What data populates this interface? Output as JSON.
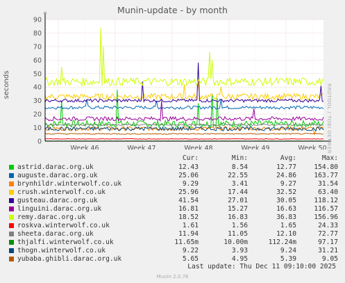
{
  "title": "Munin-update - by month",
  "side_label": "RRDTOOL / TOBI OETIKER",
  "footer": "Munin 2.0.76",
  "last_update": "Last update: Thu Dec 11 09:10:00 2025",
  "legend_headers": {
    "cur": "Cur:",
    "min": "Min:",
    "avg": "Avg:",
    "max": "Max:"
  },
  "chart_data": {
    "type": "line",
    "title": "Munin-update - by month",
    "ylabel": "seconds",
    "ylim": [
      0,
      90
    ],
    "yticks": [
      "0",
      "10",
      "20",
      "30",
      "40",
      "50",
      "60",
      "70",
      "80",
      "90"
    ],
    "xtick_labels": [
      "Week 46",
      "Week 47",
      "Week 48",
      "Week 49",
      "Week 50"
    ],
    "grid": true,
    "series": [
      {
        "name": "astrid.darac.org.uk",
        "color": "#00cc00",
        "cur": "12.43",
        "min": "8.54",
        "avg": "12.77",
        "max": "154.80",
        "base": 12.8,
        "noise": 2.5,
        "spikes": [
          [
            0.06,
            30
          ],
          [
            0.26,
            38
          ],
          [
            0.55,
            28
          ],
          [
            0.6,
            35
          ],
          [
            0.62,
            32
          ]
        ]
      },
      {
        "name": "auguste.darac.org.uk",
        "color": "#0066b3",
        "cur": "25.06",
        "min": "22.55",
        "avg": "24.86",
        "max": "163.77",
        "base": 24.9,
        "noise": 1.2,
        "spikes": [
          [
            0.15,
            31
          ],
          [
            0.4,
            30
          ],
          [
            0.63,
            31
          ]
        ]
      },
      {
        "name": "brynhildr.winterwolf.co.uk",
        "color": "#ff8000",
        "cur": "9.29",
        "min": "3.41",
        "avg": "9.27",
        "max": "31.54",
        "base": 9.3,
        "noise": 1.5,
        "spikes": [
          [
            0.97,
            5
          ]
        ]
      },
      {
        "name": "crush.winterwolf.co.uk",
        "color": "#ffcc00",
        "cur": "25.96",
        "min": "17.44",
        "avg": "32.52",
        "max": "63.40",
        "base": 33,
        "noise": 2.2,
        "spikes": [
          [
            0.5,
            42
          ],
          [
            0.55,
            44
          ],
          [
            0.63,
            40
          ]
        ]
      },
      {
        "name": "gusteau.darac.org.uk",
        "color": "#330099",
        "cur": "41.54",
        "min": "27.01",
        "avg": "30.05",
        "max": "118.12",
        "base": 30,
        "noise": 1.2,
        "spikes": [
          [
            0.35,
            44
          ],
          [
            0.55,
            58
          ],
          [
            0.99,
            41
          ]
        ]
      },
      {
        "name": "linguini.darac.org.uk",
        "color": "#990099",
        "cur": "16.81",
        "min": "15.27",
        "avg": "16.63",
        "max": "116.57",
        "base": 16.6,
        "noise": 1.5,
        "spikes": [
          [
            0.42,
            30
          ],
          [
            0.75,
            24
          ]
        ]
      },
      {
        "name": "remy.darac.org.uk",
        "color": "#ccff00",
        "cur": "18.52",
        "min": "16.83",
        "avg": "36.83",
        "max": "156.96",
        "base": 44,
        "noise": 3,
        "spikes": [
          [
            0.06,
            55
          ],
          [
            0.2,
            84
          ],
          [
            0.21,
            70
          ],
          [
            0.59,
            66
          ],
          [
            0.6,
            60
          ]
        ]
      },
      {
        "name": "roskva.winterwolf.co.uk",
        "color": "#ff0000",
        "cur": "1.61",
        "min": "1.56",
        "avg": "1.65",
        "max": "24.33",
        "base": 1.65,
        "noise": 0.2,
        "spikes": []
      },
      {
        "name": "sheeta.darac.org.uk",
        "color": "#808080",
        "cur": "11.94",
        "min": "11.05",
        "avg": "12.10",
        "max": "72.77",
        "base": 12.1,
        "noise": 0.6,
        "spikes": []
      },
      {
        "name": "thjalfi.winterwolf.co.uk",
        "color": "#008f00",
        "cur": "11.65m",
        "min": "10.00m",
        "avg": "112.24m",
        "max": "97.17",
        "base": 0.1,
        "noise": 0.05,
        "spikes": []
      },
      {
        "name": "thogn.winterwolf.co.uk",
        "color": "#00487d",
        "cur": "9.22",
        "min": "3.93",
        "avg": "9.24",
        "max": "31.21",
        "base": 9.2,
        "noise": 1.5,
        "spikes": []
      },
      {
        "name": "yubaba.ghibli.darac.org.uk",
        "color": "#b35a00",
        "cur": "5.65",
        "min": "4.95",
        "avg": "5.39",
        "max": "9.05",
        "base": 5.4,
        "noise": 0.4,
        "spikes": []
      }
    ]
  }
}
